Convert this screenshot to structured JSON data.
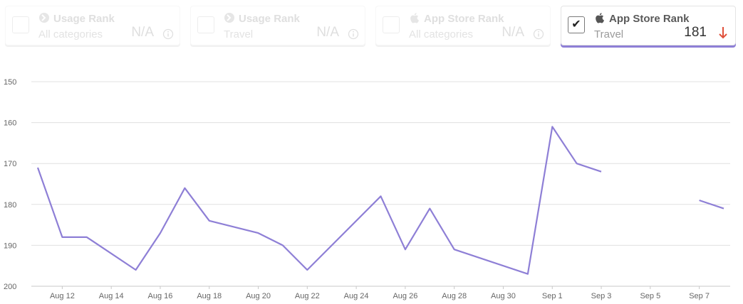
{
  "cards": [
    {
      "title": "Usage Rank",
      "category": "All categories",
      "value": "N/A",
      "icon": "usage-icon",
      "state": "disabled"
    },
    {
      "title": "Usage Rank",
      "category": "Travel",
      "value": "N/A",
      "icon": "usage-icon",
      "state": "disabled"
    },
    {
      "title": "App Store Rank",
      "category": "All categories",
      "value": "N/A",
      "icon": "apple-icon",
      "state": "disabled"
    },
    {
      "title": "App Store Rank",
      "category": "Travel",
      "value": "181",
      "icon": "apple-icon",
      "state": "checked",
      "trend": "down"
    }
  ],
  "colors": {
    "line": "#8e7fd6",
    "accent": "#8e7fd6",
    "trend_down": "#e0503a",
    "grid": "#e0e0e0"
  },
  "chart_data": {
    "type": "line",
    "y_reversed": true,
    "ylim": [
      150,
      200
    ],
    "yticks": [
      "150",
      "160",
      "170",
      "180",
      "190",
      "200"
    ],
    "xlim": [
      "Aug 11",
      "Sep 8"
    ],
    "xticks": [
      "Aug 12",
      "Aug 14",
      "Aug 16",
      "Aug 18",
      "Aug 20",
      "Aug 22",
      "Aug 24",
      "Aug 26",
      "Aug 28",
      "Aug 30",
      "Sep 1",
      "Sep 3",
      "Sep 5",
      "Sep 7"
    ],
    "grid": true,
    "series": [
      {
        "color": "#8e7fd6",
        "points": [
          {
            "x": "Aug 11",
            "y": 171
          },
          {
            "x": "Aug 12",
            "y": 188
          },
          {
            "x": "Aug 13",
            "y": 188
          },
          {
            "x": "Aug 15",
            "y": 196
          },
          {
            "x": "Aug 16",
            "y": 187
          },
          {
            "x": "Aug 17",
            "y": 176
          },
          {
            "x": "Aug 18",
            "y": 184
          },
          {
            "x": "Aug 20",
            "y": 187
          },
          {
            "x": "Aug 21",
            "y": 190
          },
          {
            "x": "Aug 22",
            "y": 196
          },
          {
            "x": "Aug 25",
            "y": 178
          },
          {
            "x": "Aug 26",
            "y": 191
          },
          {
            "x": "Aug 27",
            "y": 181
          },
          {
            "x": "Aug 28",
            "y": 191
          },
          {
            "x": "Aug 31",
            "y": 197
          },
          {
            "x": "Sep 1",
            "y": 161
          },
          {
            "x": "Sep 2",
            "y": 170
          },
          {
            "x": "Sep 3",
            "y": 172
          },
          {
            "x": "Sep 4",
            "y": null
          },
          {
            "x": "Sep 5",
            "y": null
          },
          {
            "x": "Sep 6",
            "y": null
          },
          {
            "x": "Sep 7",
            "y": 179
          },
          {
            "x": "Sep 8",
            "y": 181
          }
        ]
      }
    ]
  }
}
